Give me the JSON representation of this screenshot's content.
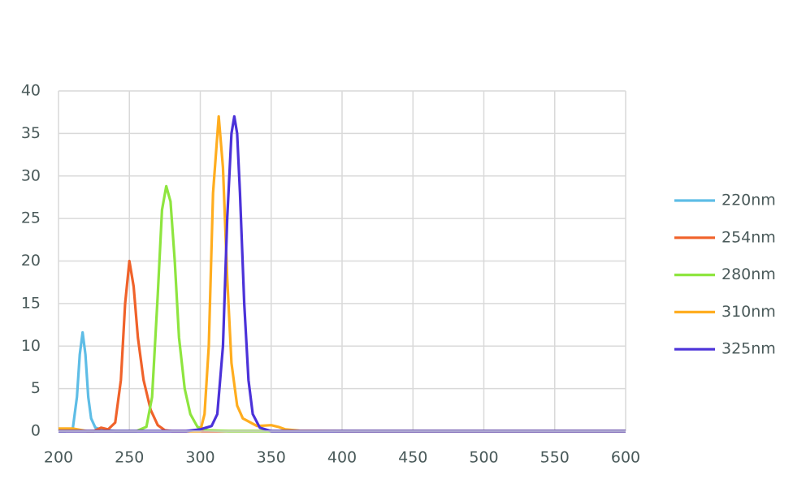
{
  "chart_data": {
    "type": "line",
    "xlim": [
      200,
      600
    ],
    "xticks": [
      200,
      250,
      300,
      350,
      400,
      450,
      500,
      550,
      600
    ],
    "ylim": [
      0,
      40
    ],
    "yticks": [
      0,
      5,
      10,
      15,
      20,
      25,
      30,
      35,
      40
    ],
    "grid": true,
    "legend": "right",
    "series": [
      {
        "name": "220nm",
        "color": "#5ebde6",
        "x": [
          200,
          205,
          210,
          213,
          215,
          217,
          219,
          221,
          223,
          226,
          230,
          240,
          600
        ],
        "values": [
          0,
          0,
          0.2,
          4,
          9,
          11.6,
          9,
          4,
          1.5,
          0.4,
          0.2,
          0,
          0
        ]
      },
      {
        "name": "254nm",
        "color": "#f0622a",
        "x": [
          200,
          225,
          230,
          235,
          240,
          244,
          247,
          250,
          253,
          256,
          260,
          265,
          270,
          275,
          280,
          600
        ],
        "values": [
          0,
          0,
          0.4,
          0.2,
          1,
          6,
          15,
          20,
          17,
          11,
          6,
          2.5,
          0.7,
          0.1,
          0,
          0
        ]
      },
      {
        "name": "280nm",
        "color": "#8ee53f",
        "x": [
          200,
          255,
          262,
          266,
          270,
          273,
          276,
          279,
          282,
          285,
          289,
          293,
          298,
          305,
          320,
          600
        ],
        "values": [
          0,
          0,
          0.5,
          4,
          16,
          26,
          28.8,
          27,
          20,
          11,
          5,
          2,
          0.5,
          0.1,
          0,
          0
        ]
      },
      {
        "name": "310nm",
        "color": "#ffad1f",
        "x": [
          200,
          210,
          220,
          300,
          303,
          306,
          309,
          313,
          316,
          319,
          322,
          326,
          330,
          340,
          350,
          355,
          360,
          370,
          400,
          600
        ],
        "values": [
          0.3,
          0.3,
          0,
          0,
          2,
          10,
          28,
          37,
          31,
          18,
          8,
          3,
          1.5,
          0.6,
          0.7,
          0.5,
          0.2,
          0.05,
          0,
          0
        ]
      },
      {
        "name": "325nm",
        "color": "#4b32d9",
        "x": [
          200,
          290,
          300,
          308,
          312,
          316,
          319,
          322,
          324,
          326,
          328,
          331,
          334,
          337,
          342,
          350,
          600
        ],
        "values": [
          0,
          0,
          0.2,
          0.6,
          2,
          10,
          25,
          35,
          37,
          35,
          28,
          15,
          6,
          2,
          0.4,
          0,
          0
        ]
      }
    ]
  }
}
